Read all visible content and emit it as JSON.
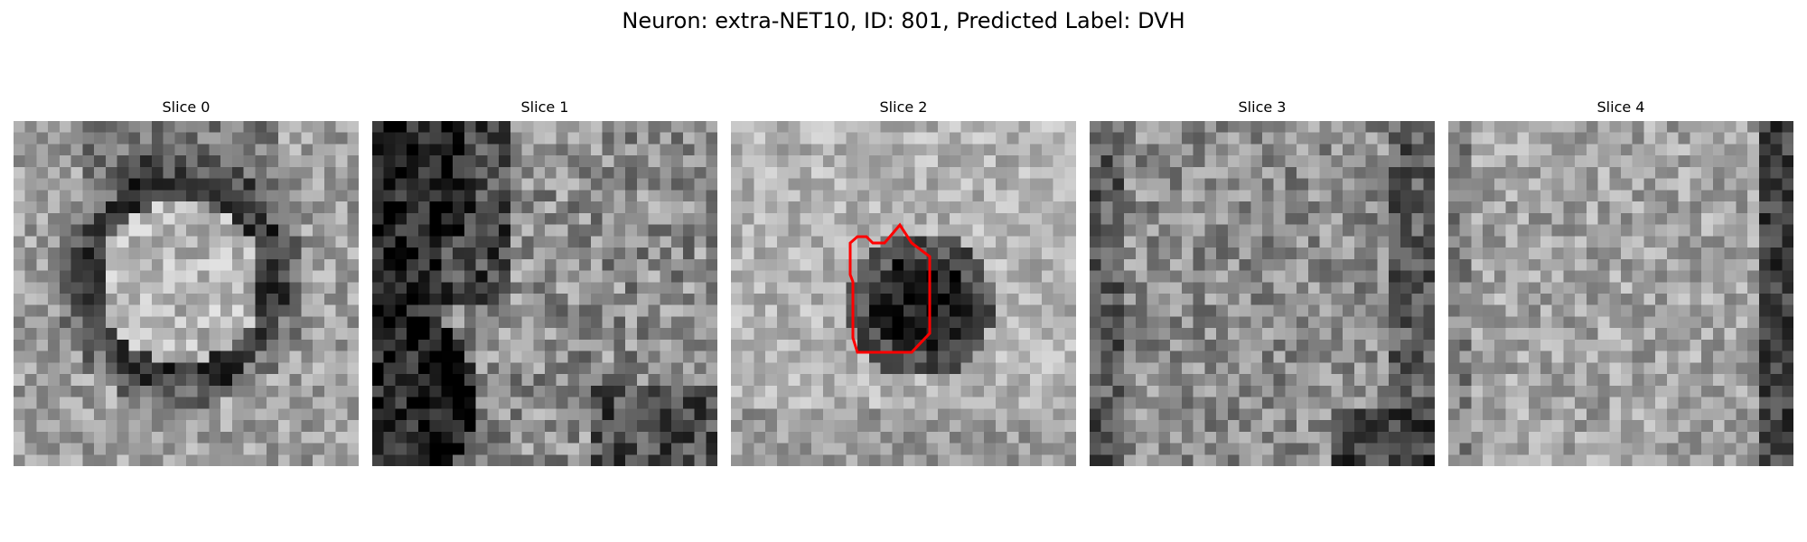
{
  "figure": {
    "title": "Neuron: extra-NET10, ID: 801, Predicted Label: DVH"
  },
  "panels": [
    {
      "label": "Slice 0",
      "has_contour": false
    },
    {
      "label": "Slice 1",
      "has_contour": false
    },
    {
      "label": "Slice 2",
      "has_contour": true
    },
    {
      "label": "Slice 3",
      "has_contour": false
    },
    {
      "label": "Slice 4",
      "has_contour": false
    }
  ],
  "colors": {
    "contour": "#ff0000",
    "background": "#ffffff"
  },
  "colormap": "gray"
}
